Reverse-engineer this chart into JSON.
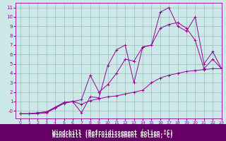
{
  "xlabel": "Windchill (Refroidissement éolien,°C)",
  "background_color": "#cce8e8",
  "grid_color": "#99bbbb",
  "line_color": "#990099",
  "xlabel_bg": "#660066",
  "xlabel_fg": "#ffffff",
  "x_values": [
    0,
    1,
    2,
    3,
    4,
    5,
    6,
    7,
    8,
    9,
    10,
    11,
    12,
    13,
    14,
    15,
    16,
    17,
    18,
    19,
    20,
    21,
    22,
    23
  ],
  "series1": [
    -0.3,
    -0.3,
    -0.2,
    -0.1,
    0.4,
    0.9,
    1.0,
    0.7,
    1.1,
    1.3,
    1.5,
    1.6,
    1.8,
    2.0,
    2.2,
    3.0,
    3.5,
    3.8,
    4.0,
    4.2,
    4.3,
    4.4,
    4.5,
    4.5
  ],
  "series2": [
    -0.3,
    -0.3,
    -0.3,
    -0.2,
    0.3,
    0.9,
    1.0,
    -0.2,
    1.5,
    1.4,
    4.8,
    6.5,
    7.0,
    3.0,
    6.8,
    7.0,
    10.5,
    11.0,
    9.0,
    8.5,
    10.0,
    5.0,
    6.3,
    4.5
  ],
  "series3": [
    -0.3,
    -0.3,
    -0.2,
    -0.1,
    0.3,
    0.8,
    1.0,
    1.2,
    3.8,
    2.0,
    2.8,
    4.0,
    5.5,
    5.3,
    6.8,
    7.0,
    8.8,
    9.2,
    9.4,
    8.8,
    7.5,
    4.5,
    5.5,
    4.5
  ],
  "ylim": [
    -0.8,
    11.5
  ],
  "xlim": [
    -0.5,
    23
  ],
  "yticks": [
    0,
    1,
    2,
    3,
    4,
    5,
    6,
    7,
    8,
    9,
    10,
    11
  ],
  "ytick_labels": [
    "-0",
    "1",
    "2",
    "3",
    "4",
    "5",
    "6",
    "7",
    "8",
    "9",
    "10",
    "11"
  ],
  "xticks": [
    0,
    1,
    2,
    3,
    4,
    5,
    6,
    7,
    8,
    9,
    10,
    11,
    12,
    13,
    14,
    15,
    16,
    17,
    18,
    19,
    20,
    21,
    22,
    23
  ]
}
